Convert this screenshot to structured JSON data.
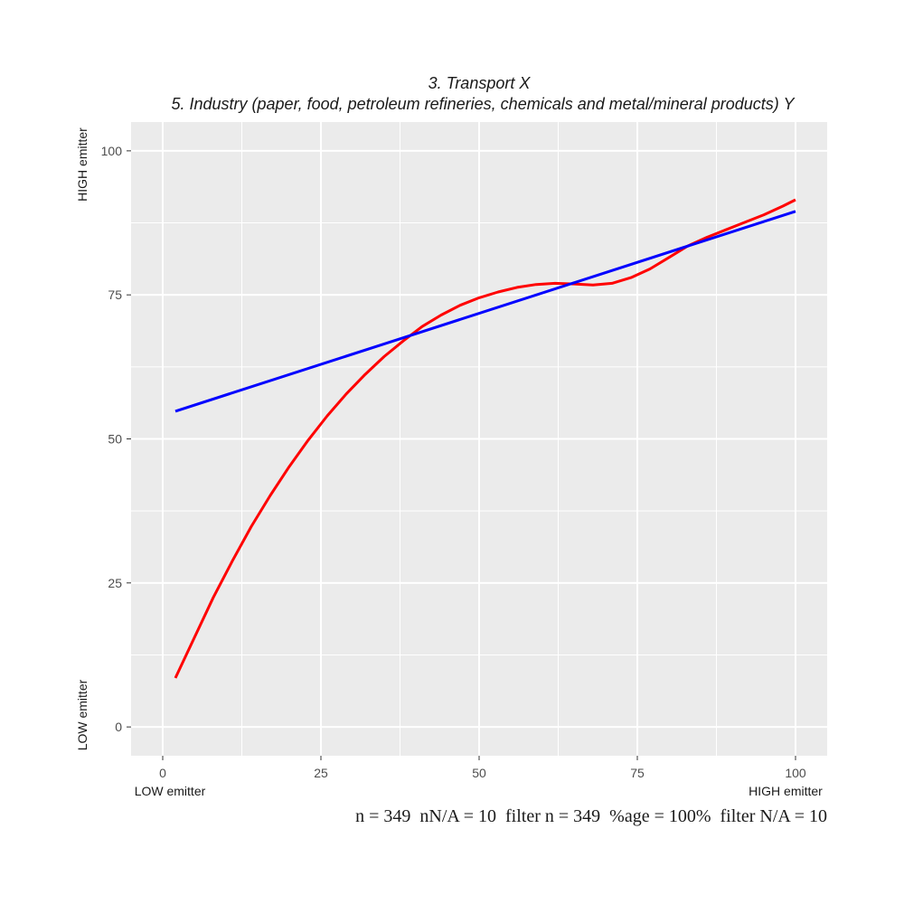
{
  "chart_data": {
    "type": "line",
    "title": "3. Transport X",
    "subtitle": "5. Industry (paper, food, petroleum refineries, chemicals and metal/mineral products) Y",
    "xlim": [
      -5,
      105
    ],
    "ylim": [
      -5,
      105
    ],
    "x_ticks": [
      0,
      25,
      50,
      75,
      100
    ],
    "y_ticks": [
      0,
      25,
      50,
      75,
      100
    ],
    "x_tick_labels": [
      "0",
      "25",
      "50",
      "75",
      "100"
    ],
    "y_tick_labels": [
      "0",
      "25",
      "50",
      "75",
      "100"
    ],
    "x_low_label": "LOW emitter",
    "x_high_label": "HIGH emitter",
    "y_low_label": "LOW emitter",
    "y_high_label": "HIGH emitter",
    "grid": true,
    "series": [
      {
        "color": "#ff0000",
        "x": [
          2,
          5,
          8,
          11,
          14,
          17,
          20,
          23,
          26,
          29,
          32,
          35,
          38,
          41,
          44,
          47,
          50,
          53,
          56,
          59,
          62,
          65,
          68,
          71,
          74,
          77,
          80,
          83,
          86,
          89,
          92,
          95,
          98,
          100
        ],
        "y": [
          8.5,
          15.5,
          22.5,
          28.8,
          34.8,
          40.2,
          45.2,
          49.8,
          54.0,
          57.8,
          61.2,
          64.3,
          67.0,
          69.5,
          71.5,
          73.2,
          74.5,
          75.5,
          76.3,
          76.8,
          77.0,
          76.9,
          76.7,
          77.0,
          78.0,
          79.5,
          81.5,
          83.5,
          85.0,
          86.3,
          87.6,
          88.9,
          90.4,
          91.5
        ]
      },
      {
        "color": "#0000ff",
        "x": [
          2,
          100
        ],
        "y": [
          54.8,
          89.5
        ]
      }
    ]
  },
  "caption": "n = 349  nN/A = 10  filter n = 349  %age = 100%  filter N/A = 10"
}
